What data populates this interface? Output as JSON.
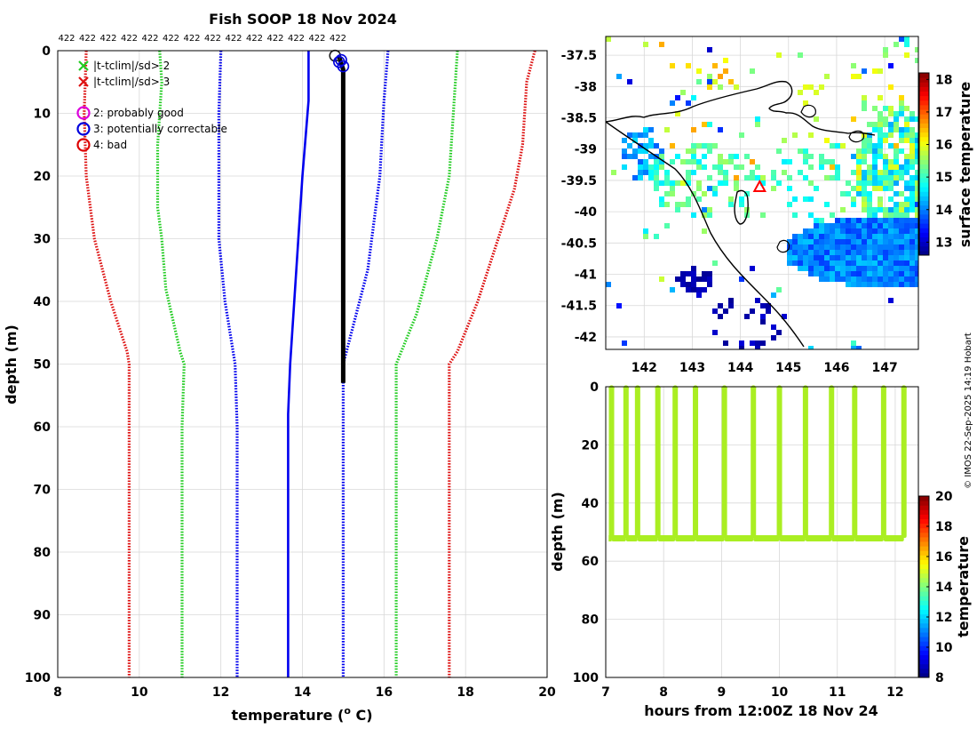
{
  "chart_data": [
    {
      "id": "profile",
      "type": "line",
      "title": "Fish SOOP 18 Nov 2024",
      "xlabel": "temperature (",
      "xlabel_sup": "o",
      "xlabel_unit": " C)",
      "ylabel": "depth (m)",
      "xlim": [
        8,
        20
      ],
      "ylim": [
        100,
        0
      ],
      "xticks": [
        8,
        10,
        12,
        14,
        16,
        18,
        20
      ],
      "yticks": [
        0,
        10,
        20,
        30,
        40,
        50,
        60,
        70,
        80,
        90,
        100
      ],
      "grid": true,
      "count_labels": [
        "422",
        "422",
        "422",
        "422",
        "422",
        "422",
        "422",
        "422",
        "422",
        "422",
        "422",
        "422",
        "422",
        "422"
      ],
      "legend": [
        {
          "marker": "x",
          "color": "#22cc22",
          "label": "|t-tclim|/sd> 2"
        },
        {
          "marker": "x",
          "color": "#dd1111",
          "label": "|t-tclim|/sd> 3"
        },
        {
          "marker": "o",
          "color": "#dd00dd",
          "label": "2: probably good"
        },
        {
          "marker": "o",
          "color": "#0000dd",
          "label": "3: potentially correctable"
        },
        {
          "marker": "o",
          "color": "#dd0000",
          "label": "4: bad"
        }
      ],
      "series": [
        {
          "name": "clim +3sd",
          "color": "#dd1111",
          "style": "dotted",
          "points": [
            [
              19.7,
              0
            ],
            [
              19.5,
              5
            ],
            [
              19.4,
              15
            ],
            [
              19.2,
              22
            ],
            [
              18.8,
              30
            ],
            [
              18.3,
              40
            ],
            [
              17.8,
              48
            ],
            [
              17.6,
              50
            ],
            [
              17.6,
              60
            ],
            [
              17.6,
              100
            ]
          ]
        },
        {
          "name": "clim +2sd",
          "color": "#22cc22",
          "style": "dotted",
          "points": [
            [
              17.8,
              0
            ],
            [
              17.7,
              10
            ],
            [
              17.6,
              20
            ],
            [
              17.3,
              30
            ],
            [
              16.8,
              42
            ],
            [
              16.3,
              50
            ],
            [
              16.3,
              60
            ],
            [
              16.3,
              100
            ]
          ]
        },
        {
          "name": "clim +1sd",
          "color": "#0000ee",
          "style": "dotted",
          "points": [
            [
              16.1,
              0
            ],
            [
              16.0,
              8
            ],
            [
              15.9,
              20
            ],
            [
              15.6,
              35
            ],
            [
              15.2,
              45
            ],
            [
              15.0,
              50
            ],
            [
              15.0,
              100
            ]
          ]
        },
        {
          "name": "clim mean",
          "color": "#0000ee",
          "style": "solid",
          "points": [
            [
              14.15,
              0
            ],
            [
              14.15,
              8
            ],
            [
              14.1,
              12
            ],
            [
              14.0,
              20
            ],
            [
              13.9,
              30
            ],
            [
              13.8,
              40
            ],
            [
              13.7,
              50
            ],
            [
              13.65,
              58
            ],
            [
              13.65,
              100
            ]
          ]
        },
        {
          "name": "clim -1sd",
          "color": "#0000ee",
          "style": "dotted",
          "points": [
            [
              12.0,
              0
            ],
            [
              11.95,
              10
            ],
            [
              11.95,
              20
            ],
            [
              11.95,
              30
            ],
            [
              12.1,
              40
            ],
            [
              12.35,
              50
            ],
            [
              12.4,
              60
            ],
            [
              12.4,
              100
            ]
          ]
        },
        {
          "name": "clim -2sd",
          "color": "#22cc22",
          "style": "dotted",
          "points": [
            [
              10.5,
              0
            ],
            [
              10.55,
              5
            ],
            [
              10.45,
              15
            ],
            [
              10.45,
              25
            ],
            [
              10.55,
              30
            ],
            [
              10.65,
              38
            ],
            [
              11.0,
              48
            ],
            [
              11.1,
              50
            ],
            [
              11.05,
              60
            ],
            [
              11.05,
              100
            ]
          ]
        },
        {
          "name": "clim -3sd",
          "color": "#dd1111",
          "style": "dotted",
          "points": [
            [
              8.7,
              0
            ],
            [
              8.65,
              10
            ],
            [
              8.7,
              20
            ],
            [
              8.9,
              30
            ],
            [
              9.3,
              40
            ],
            [
              9.7,
              48
            ],
            [
              9.75,
              50
            ],
            [
              9.75,
              60
            ],
            [
              9.75,
              100
            ]
          ]
        },
        {
          "name": "observed",
          "color": "#000000",
          "style": "thick",
          "points": [
            [
              14.9,
              1
            ],
            [
              15.0,
              3
            ],
            [
              15.0,
              10
            ],
            [
              15.0,
              30
            ],
            [
              15.0,
              53
            ]
          ]
        }
      ]
    },
    {
      "id": "map",
      "type": "heatmap",
      "xticks": [
        142,
        143,
        144,
        145,
        146,
        147
      ],
      "yticks": [
        "-37.5",
        "-38",
        "-38.5",
        "-39",
        "-39.5",
        "-40",
        "-40.5",
        "-41",
        "-41.5",
        "-42"
      ],
      "xlim": [
        141.2,
        147.7
      ],
      "ylim": [
        -42.2,
        -37.2
      ],
      "colorbar_label": "surface temperature",
      "colorbar_ticks": [
        13,
        14,
        15,
        16,
        17,
        18
      ],
      "colorbar_range": [
        12.6,
        18.2
      ],
      "marker": {
        "lon": 144.4,
        "lat": -39.6,
        "color": "#ff0000"
      }
    },
    {
      "id": "timeseries",
      "type": "scatter",
      "xlabel": "hours from 12:00Z 18 Nov 24",
      "ylabel": "depth (m)",
      "xlim": [
        7,
        12.4
      ],
      "ylim": [
        100,
        0
      ],
      "xticks": [
        7,
        8,
        9,
        10,
        11,
        12
      ],
      "yticks": [
        0,
        20,
        40,
        60,
        80,
        100
      ],
      "colorbar_label": "temperature",
      "colorbar_ticks": [
        8,
        10,
        12,
        14,
        16,
        18,
        20
      ],
      "colorbar_range": [
        8,
        20
      ],
      "point_color": "#aaee22",
      "cast_hours": [
        7.1,
        7.35,
        7.55,
        7.9,
        8.2,
        8.55,
        9.05,
        9.55,
        10.0,
        10.45,
        10.9,
        11.3,
        11.8,
        12.15
      ],
      "bottom_depth": 52
    }
  ],
  "credit": "© IMOS 22-Sep-2025 14:19 Hobart"
}
